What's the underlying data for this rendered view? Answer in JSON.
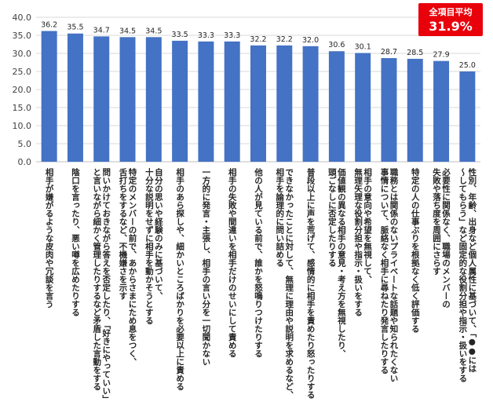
{
  "chart_data": {
    "type": "bar",
    "ylim": [
      0,
      40
    ],
    "yticks": [
      "0.0",
      "5.0",
      "10.0",
      "15.0",
      "20.0",
      "25.0",
      "30.0",
      "35.0",
      "40.0"
    ],
    "grid": true,
    "bar_color": "#4472c4",
    "values": [
      36.2,
      35.5,
      34.7,
      34.5,
      34.5,
      33.5,
      33.3,
      33.3,
      32.2,
      32.2,
      32.0,
      30.6,
      30.1,
      28.7,
      28.5,
      27.9,
      25.0
    ],
    "value_labels": [
      "36.2",
      "35.5",
      "34.7",
      "34.5",
      "34.5",
      "33.5",
      "33.3",
      "33.3",
      "32.2",
      "32.2",
      "32.0",
      "30.6",
      "30.1",
      "28.7",
      "28.5",
      "27.9",
      "25.0"
    ],
    "categories": [
      [
        "相手が嫌がるような皮肉や冗談を言う"
      ],
      [
        "陰口を言ったり、悪い噂を広めたりする"
      ],
      [
        "問いかけておきながら答えを否定したり、「好きにやっていい」",
        "と言いながら細かく管理したりするなど矛盾した言動をする"
      ],
      [
        "特定のメンバーの前で、あからさまにため息をつく、",
        "舌打ちをするなど、不機嫌さを示す"
      ],
      [
        "自分の思いや経験のみに基づいて、",
        "十分な説明をせずに相手を動かそうとする"
      ],
      [
        "相手のあら探しや、細かいところばかりを必要以上に責める"
      ],
      [
        "一方的に発言・主張し、相手の言い分を一切聞かない"
      ],
      [
        "相手の失敗や間違いを相手だけのせいにして責める"
      ],
      [
        "他の人が見ている前で、誰かを怒鳴りつけたりする"
      ],
      [
        "できなかったことに対して、無理に理由や説明を求めるなど、",
        "相手を論理的に問い詰める"
      ],
      [
        "普段以上に声を荒げて、感情的に相手を責めたり怒ったりする"
      ],
      [
        "価値観の異なる相手の意見・考え方を無視したり、",
        "頭ごなしに否定したりする"
      ],
      [
        "相手の意向や希望を無視して、",
        "無理矢理な役割分担や指示・扱いをする"
      ],
      [
        "職務とは関係のないプライベートな話題や知られたくない",
        "事情について、脈絡なく相手に尋ねたり発言したりする"
      ],
      [
        "特定の人の仕事ぶりを根拠なく低く評価する"
      ],
      [
        "必要性に関係なく、職場のメンバーの",
        "失敗や落ち度を周囲にさらす"
      ],
      [
        "性別、年齢、出身など個人属性に基づいて、「●●には",
        "～してもらう」など固定的な役割分担や指示・扱いをする"
      ]
    ]
  },
  "badge": {
    "line1": "全項目平均",
    "line2": "31.9%"
  }
}
